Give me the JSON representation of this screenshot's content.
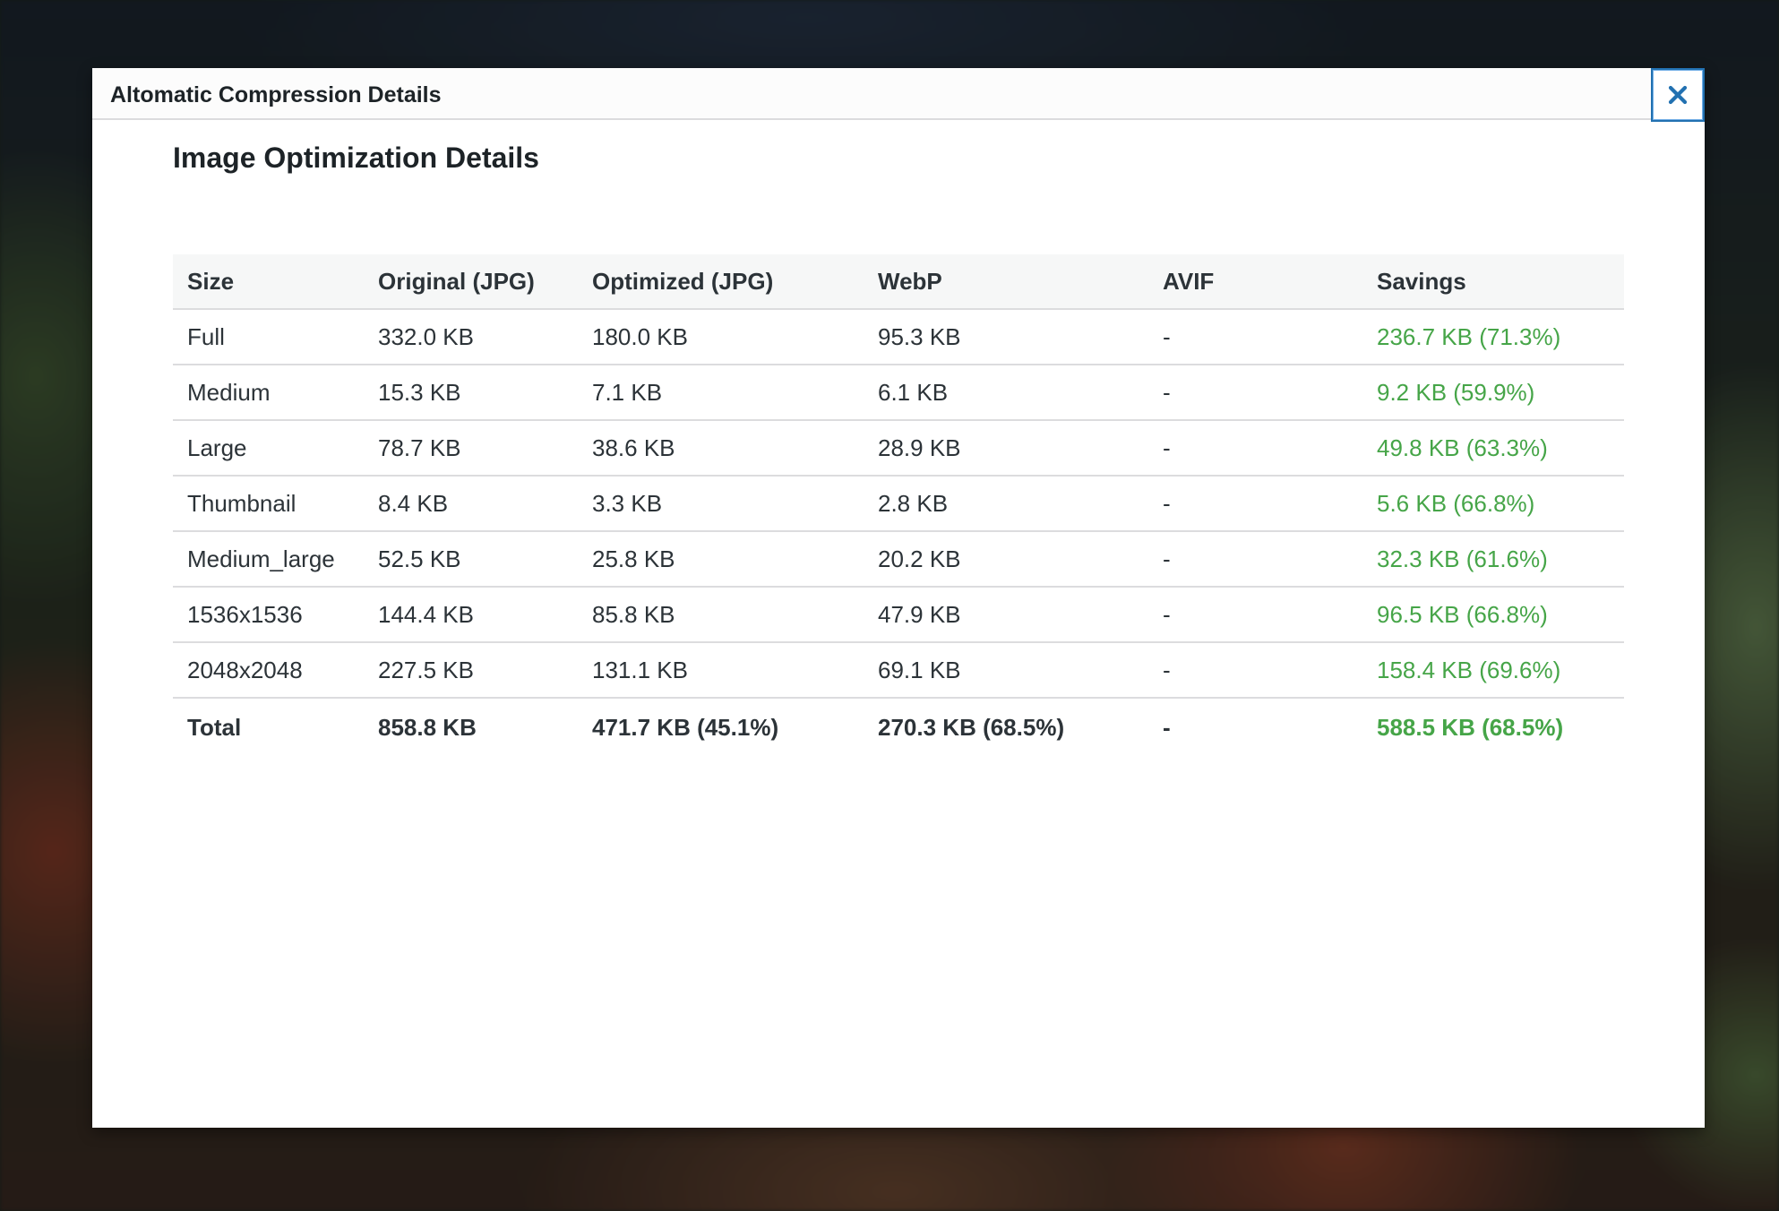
{
  "modal": {
    "title": "Altomatic Compression Details",
    "close_icon": "close-icon"
  },
  "section": {
    "title": "Image Optimization Details"
  },
  "table": {
    "headers": [
      "Size",
      "Original (JPG)",
      "Optimized (JPG)",
      "WebP",
      "AVIF",
      "Savings"
    ],
    "rows": [
      [
        "Full",
        "332.0 KB",
        "180.0 KB",
        "95.3 KB",
        "-",
        "236.7 KB (71.3%)"
      ],
      [
        "Medium",
        "15.3 KB",
        "7.1 KB",
        "6.1 KB",
        "-",
        "9.2 KB (59.9%)"
      ],
      [
        "Large",
        "78.7 KB",
        "38.6 KB",
        "28.9 KB",
        "-",
        "49.8 KB (63.3%)"
      ],
      [
        "Thumbnail",
        "8.4 KB",
        "3.3 KB",
        "2.8 KB",
        "-",
        "5.6 KB (66.8%)"
      ],
      [
        "Medium_large",
        "52.5 KB",
        "25.8 KB",
        "20.2 KB",
        "-",
        "32.3 KB (61.6%)"
      ],
      [
        "1536x1536",
        "144.4 KB",
        "85.8 KB",
        "47.9 KB",
        "-",
        "96.5 KB (66.8%)"
      ],
      [
        "2048x2048",
        "227.5 KB",
        "131.1 KB",
        "69.1 KB",
        "-",
        "158.4 KB (69.6%)"
      ]
    ],
    "total": [
      "Total",
      "858.8 KB",
      "471.7 KB (45.1%)",
      "270.3 KB (68.5%)",
      "-",
      "588.5 KB (68.5%)"
    ]
  },
  "colors": {
    "savings_green": "#46a548",
    "accent_blue": "#2271b1",
    "text": "#2c3338"
  }
}
